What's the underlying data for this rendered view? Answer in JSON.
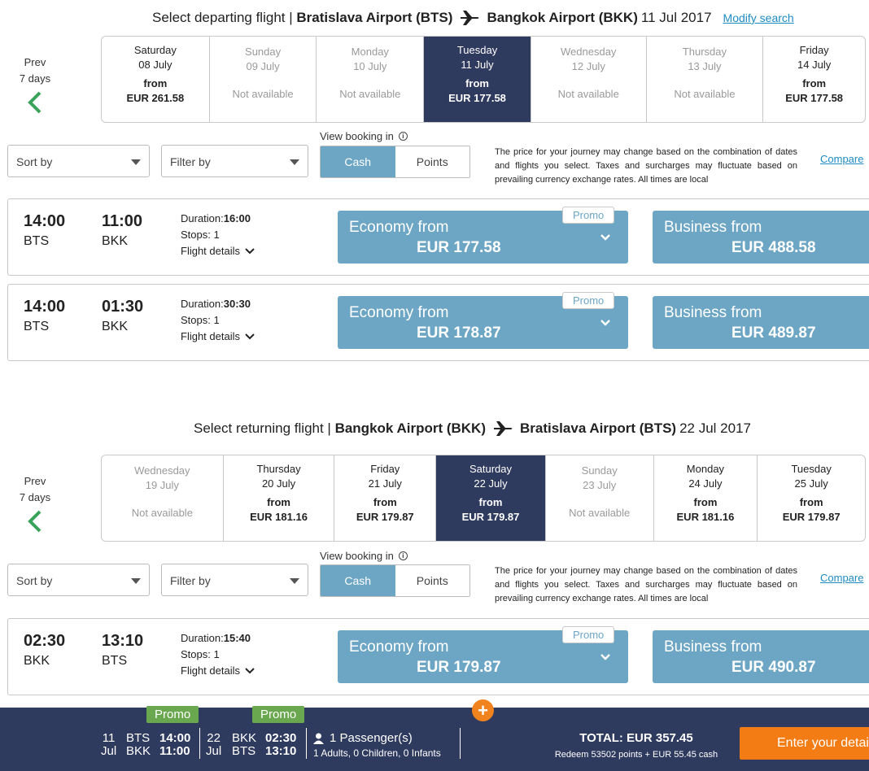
{
  "departing": {
    "title_prefix": "Select departing flight | ",
    "origin": "Bratislava Airport (BTS)",
    "destination": "Bangkok Airport (BKK)",
    "date": "11 Jul 2017",
    "modify": "Modify search",
    "prev_label": "Prev",
    "prev_days": "7 days",
    "days": [
      {
        "weekday": "Saturday",
        "date": "08 July",
        "from": "from",
        "price": "EUR 261.58",
        "available": true
      },
      {
        "weekday": "Sunday",
        "date": "09 July",
        "status": "Not available",
        "available": false
      },
      {
        "weekday": "Monday",
        "date": "10 July",
        "status": "Not available",
        "available": false
      },
      {
        "weekday": "Tuesday",
        "date": "11 July",
        "from": "from",
        "price": "EUR 177.58",
        "available": true,
        "selected": true
      },
      {
        "weekday": "Wednesday",
        "date": "12 July",
        "status": "Not available",
        "available": false
      },
      {
        "weekday": "Thursday",
        "date": "13 July",
        "status": "Not available",
        "available": false
      },
      {
        "weekday": "Friday",
        "date": "14 July",
        "from": "from",
        "price": "EUR 177.58",
        "available": true
      }
    ],
    "flights": [
      {
        "dep_time": "14:00",
        "dep_code": "BTS",
        "arr_time": "11:00",
        "arr_code": "BKK",
        "duration_label": "Duration:",
        "duration": "16:00",
        "stops": "Stops: 1",
        "details": "Flight details",
        "promo": "Promo",
        "economy_label": "Economy from",
        "economy_price": "EUR 177.58",
        "business_label": "Business from",
        "business_price": "EUR 488.58"
      },
      {
        "dep_time": "14:00",
        "dep_code": "BTS",
        "arr_time": "01:30",
        "arr_code": "BKK",
        "duration_label": "Duration:",
        "duration": "30:30",
        "stops": "Stops: 1",
        "details": "Flight details",
        "promo": "Promo",
        "economy_label": "Economy from",
        "economy_price": "EUR 178.87",
        "business_label": "Business from",
        "business_price": "EUR 489.87"
      }
    ]
  },
  "returning": {
    "title_prefix": "Select returning flight | ",
    "origin": "Bangkok Airport (BKK)",
    "destination": "Bratislava Airport (BTS)",
    "date": "22 Jul 2017",
    "prev_label": "Prev",
    "prev_days": "7 days",
    "days": [
      {
        "weekday": "Wednesday",
        "date": "19 July",
        "status": "Not available",
        "available": false
      },
      {
        "weekday": "Thursday",
        "date": "20 July",
        "from": "from",
        "price": "EUR 181.16",
        "available": true
      },
      {
        "weekday": "Friday",
        "date": "21 July",
        "from": "from",
        "price": "EUR 179.87",
        "available": true
      },
      {
        "weekday": "Saturday",
        "date": "22 July",
        "from": "from",
        "price": "EUR 179.87",
        "available": true,
        "selected": true
      },
      {
        "weekday": "Sunday",
        "date": "23 July",
        "status": "Not available",
        "available": false
      },
      {
        "weekday": "Monday",
        "date": "24 July",
        "from": "from",
        "price": "EUR 181.16",
        "available": true
      },
      {
        "weekday": "Tuesday",
        "date": "25 July",
        "from": "from",
        "price": "EUR 179.87",
        "available": true
      }
    ],
    "flights": [
      {
        "dep_time": "02:30",
        "dep_code": "BKK",
        "arr_time": "13:10",
        "arr_code": "BTS",
        "duration_label": "Duration:",
        "duration": "15:40",
        "stops": "Stops: 1",
        "details": "Flight details",
        "promo": "Promo",
        "economy_label": "Economy from",
        "economy_price": "EUR 179.87",
        "business_label": "Business from",
        "business_price": "EUR 490.87"
      }
    ]
  },
  "controls": {
    "sort_by": "Sort by",
    "filter_by": "Filter by",
    "view_booking": "View booking in",
    "cash": "Cash",
    "points": "Points",
    "note": "The price for your journey may change based on the combination of dates and flights you select. Taxes and surcharges may fluctuate based on prevailing currency exchange rates. All times are local",
    "compare": "Compare"
  },
  "summary": {
    "out_promo": "Promo",
    "ret_promo": "Promo",
    "out_day": "11",
    "out_month": "Jul",
    "out_from": "BTS",
    "out_to": "BKK",
    "out_dep": "14:00",
    "out_arr": "11:00",
    "ret_day": "22",
    "ret_month": "Jul",
    "ret_from": "BKK",
    "ret_to": "BTS",
    "ret_dep": "02:30",
    "ret_arr": "13:10",
    "passengers": "1 Passenger(s)",
    "passenger_detail": "1 Adults, 0 Children, 0 Infants",
    "total": "TOTAL: EUR 357.45",
    "redeem": "Redeem 53502 points + EUR 55.45 cash",
    "cta": "Enter your details",
    "plus": "+"
  },
  "colors": {
    "navy": "#2f3a5f",
    "fare": "#6ca6c4",
    "accent": "#f47c14",
    "link": "#1e8bc3",
    "promo_green": "#6aa84f",
    "chevron_green": "#3aa35b"
  }
}
